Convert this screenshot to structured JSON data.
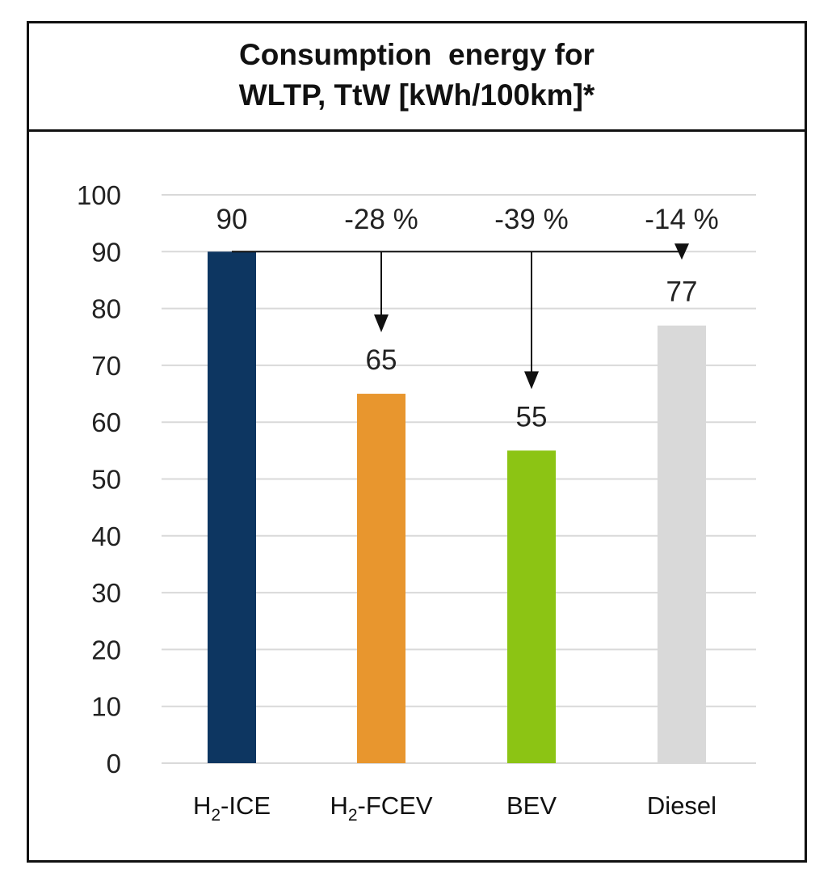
{
  "chart_data": {
    "type": "bar",
    "title": [
      "Consumption  energy for",
      "WLTP, TtW [kWh/100km]*"
    ],
    "categories": [
      {
        "prefix": "H",
        "sub": "2",
        "suffix": "-ICE"
      },
      {
        "prefix": "H",
        "sub": "2",
        "suffix": "-FCEV"
      },
      {
        "prefix": "BEV",
        "sub": "",
        "suffix": ""
      },
      {
        "prefix": "Diesel",
        "sub": "",
        "suffix": ""
      }
    ],
    "values": [
      90,
      65,
      55,
      77
    ],
    "value_labels": [
      "90",
      "65",
      "55",
      "77"
    ],
    "colors": [
      "#0d3661",
      "#e8962e",
      "#8cc414",
      "#d9d9d9"
    ],
    "ylim": [
      0,
      100
    ],
    "yticks": [
      0,
      10,
      20,
      30,
      40,
      50,
      60,
      70,
      80,
      90,
      100
    ],
    "grid": true,
    "gridline_color": "#d9d9d9",
    "xlabel": "",
    "ylabel": "",
    "annotations": [
      {
        "text": "-28 %",
        "target_index": 1
      },
      {
        "text": "-39 %",
        "target_index": 2
      },
      {
        "text": "-14 %",
        "target_index": 3
      }
    ],
    "reference": {
      "value": 90,
      "from_index": 0
    }
  }
}
